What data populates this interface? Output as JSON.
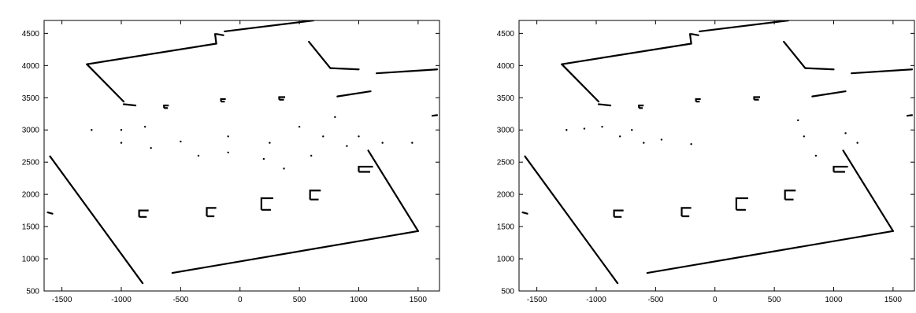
{
  "chart_data": [
    {
      "type": "scatter",
      "title": "",
      "xlabel": "",
      "ylabel": "",
      "xlim": [
        -1650,
        1680
      ],
      "ylim": [
        500,
        4700
      ],
      "xticks": [
        -1500,
        -1000,
        -500,
        0,
        500,
        1000,
        1500
      ],
      "yticks": [
        500,
        1000,
        1500,
        2000,
        2500,
        3000,
        3500,
        4000,
        4500
      ],
      "grid": false,
      "legend": "none",
      "series": [
        {
          "kind": "walls",
          "values": [
            [
              [
                -1290,
                4020
              ],
              [
                -200,
                4340
              ]
            ],
            [
              [
                -1290,
                4020
              ],
              [
                -980,
                3440
              ]
            ],
            [
              [
                -200,
                4340
              ],
              [
                -210,
                4490
              ]
            ],
            [
              [
                -200,
                4490
              ],
              [
                -140,
                4470
              ]
            ],
            [
              [
                -130,
                4530
              ],
              [
                620,
                4700
              ]
            ],
            [
              [
                580,
                4370
              ],
              [
                760,
                3960
              ]
            ],
            [
              [
                760,
                3960
              ],
              [
                1000,
                3940
              ]
            ],
            [
              [
                1150,
                3880
              ],
              [
                1660,
                3940
              ]
            ],
            [
              [
                820,
                3520
              ],
              [
                1100,
                3600
              ]
            ],
            [
              [
                1080,
                2680
              ],
              [
                1500,
                1430
              ]
            ],
            [
              [
                -570,
                780
              ],
              [
                1500,
                1430
              ]
            ],
            [
              [
                -1600,
                2590
              ],
              [
                -820,
                620
              ]
            ],
            [
              [
                -880,
                3380
              ],
              [
                -980,
                3400
              ]
            ],
            [
              [
                1620,
                3220
              ],
              [
                1660,
                3230
              ]
            ],
            [
              [
                -1620,
                1720
              ],
              [
                -1580,
                1700
              ]
            ]
          ]
        },
        {
          "kind": "pillars",
          "values": [
            [
              [
                -640,
                3340
              ],
              [
                -600,
                3380
              ]
            ],
            [
              [
                -160,
                3440
              ],
              [
                -120,
                3480
              ]
            ],
            [
              [
                330,
                3470
              ],
              [
                380,
                3510
              ]
            ],
            [
              [
                -850,
                1650
              ],
              [
                -770,
                1750
              ]
            ],
            [
              [
                -280,
                1660
              ],
              [
                -200,
                1790
              ]
            ],
            [
              [
                180,
                1760
              ],
              [
                280,
                1940
              ]
            ],
            [
              [
                590,
                1920
              ],
              [
                680,
                2060
              ]
            ],
            [
              [
                1000,
                2350
              ],
              [
                1120,
                2430
              ]
            ]
          ]
        },
        {
          "kind": "noise",
          "values": [
            [
              -1000,
              2800
            ],
            [
              -750,
              2720
            ],
            [
              -500,
              2820
            ],
            [
              -350,
              2600
            ],
            [
              -100,
              2650
            ],
            [
              200,
              2550
            ],
            [
              370,
              2400
            ],
            [
              600,
              2600
            ],
            [
              900,
              2750
            ],
            [
              1200,
              2800
            ],
            [
              1450,
              2800
            ],
            [
              800,
              3200
            ],
            [
              500,
              3050
            ],
            [
              -800,
              3050
            ],
            [
              -1250,
              3000
            ],
            [
              -1000,
              3000
            ],
            [
              -100,
              2900
            ],
            [
              250,
              2800
            ],
            [
              700,
              2900
            ],
            [
              1000,
              2900
            ]
          ]
        }
      ]
    },
    {
      "type": "scatter",
      "title": "",
      "xlabel": "",
      "ylabel": "",
      "xlim": [
        -1650,
        1680
      ],
      "ylim": [
        500,
        4700
      ],
      "xticks": [
        -1500,
        -1000,
        -500,
        0,
        500,
        1000,
        1500
      ],
      "yticks": [
        500,
        1000,
        1500,
        2000,
        2500,
        3000,
        3500,
        4000,
        4500
      ],
      "grid": false,
      "legend": "none",
      "series": [
        {
          "kind": "walls",
          "values": [
            [
              [
                -1290,
                4020
              ],
              [
                -200,
                4340
              ]
            ],
            [
              [
                -1290,
                4020
              ],
              [
                -980,
                3440
              ]
            ],
            [
              [
                -200,
                4340
              ],
              [
                -210,
                4490
              ]
            ],
            [
              [
                -200,
                4490
              ],
              [
                -140,
                4470
              ]
            ],
            [
              [
                -130,
                4530
              ],
              [
                620,
                4700
              ]
            ],
            [
              [
                580,
                4370
              ],
              [
                760,
                3960
              ]
            ],
            [
              [
                760,
                3960
              ],
              [
                1000,
                3940
              ]
            ],
            [
              [
                1150,
                3880
              ],
              [
                1660,
                3940
              ]
            ],
            [
              [
                820,
                3520
              ],
              [
                1100,
                3600
              ]
            ],
            [
              [
                1080,
                2680
              ],
              [
                1500,
                1430
              ]
            ],
            [
              [
                -570,
                780
              ],
              [
                1500,
                1430
              ]
            ],
            [
              [
                -1600,
                2590
              ],
              [
                -820,
                620
              ]
            ],
            [
              [
                -880,
                3380
              ],
              [
                -980,
                3400
              ]
            ],
            [
              [
                1620,
                3220
              ],
              [
                1660,
                3230
              ]
            ],
            [
              [
                -1620,
                1720
              ],
              [
                -1580,
                1700
              ]
            ]
          ]
        },
        {
          "kind": "pillars",
          "values": [
            [
              [
                -640,
                3340
              ],
              [
                -600,
                3380
              ]
            ],
            [
              [
                -160,
                3440
              ],
              [
                -120,
                3480
              ]
            ],
            [
              [
                330,
                3470
              ],
              [
                380,
                3510
              ]
            ],
            [
              [
                -850,
                1650
              ],
              [
                -770,
                1750
              ]
            ],
            [
              [
                -280,
                1660
              ],
              [
                -200,
                1790
              ]
            ],
            [
              [
                180,
                1760
              ],
              [
                280,
                1940
              ]
            ],
            [
              [
                590,
                1920
              ],
              [
                680,
                2060
              ]
            ],
            [
              [
                1000,
                2350
              ],
              [
                1120,
                2430
              ]
            ]
          ]
        },
        {
          "kind": "noise",
          "values": [
            [
              -800,
              2900
            ],
            [
              -700,
              3000
            ],
            [
              -600,
              2800
            ],
            [
              -450,
              2850
            ],
            [
              -200,
              2780
            ],
            [
              700,
              3150
            ],
            [
              750,
              2900
            ],
            [
              850,
              2600
            ],
            [
              1100,
              2950
            ],
            [
              1200,
              2800
            ],
            [
              -1250,
              3000
            ],
            [
              -1100,
              3020
            ],
            [
              -950,
              3050
            ]
          ]
        }
      ]
    }
  ]
}
